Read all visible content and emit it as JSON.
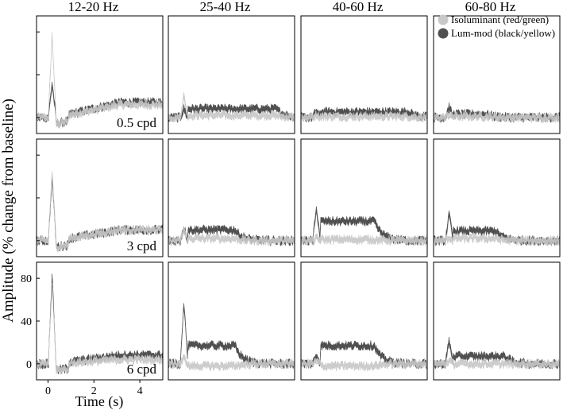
{
  "chart_data": {
    "type": "line",
    "ylabel": "Amplitude (% change from baseline)",
    "xlabel": "Time (s)",
    "columns": [
      "12-20 Hz",
      "25-40 Hz",
      "40-60 Hz",
      "60-80 Hz"
    ],
    "rows": [
      "0.5 cpd",
      "3 cpd",
      "6 cpd"
    ],
    "xlim": [
      -0.5,
      5.0
    ],
    "ylim": [
      -15,
      95
    ],
    "xticks": [
      0,
      2,
      4
    ],
    "yticks": [
      0,
      40,
      80
    ],
    "legend": {
      "position": "top-right",
      "entries": [
        {
          "label": "Isoluminant (red/green)",
          "color": "#c8c8c8"
        },
        {
          "label": "Lum-mod (black/yellow)",
          "color": "#505050"
        }
      ]
    },
    "grid": false,
    "series": [
      {
        "row": 0,
        "col": 0,
        "iso": {
          "peak": 78,
          "sustained": 12
        },
        "lum": {
          "peak": 32,
          "sustained": 14
        }
      },
      {
        "row": 0,
        "col": 1,
        "iso": {
          "peak": 20,
          "sustained": 2
        },
        "lum": {
          "peak": 8,
          "sustained": 8
        }
      },
      {
        "row": 0,
        "col": 2,
        "iso": {
          "peak": 3,
          "sustained": 1
        },
        "lum": {
          "peak": 6,
          "sustained": 5
        }
      },
      {
        "row": 0,
        "col": 3,
        "iso": {
          "peak": 3,
          "sustained": 1
        },
        "lum": {
          "peak": 10,
          "sustained": 3
        }
      },
      {
        "row": 1,
        "col": 0,
        "iso": {
          "peak": 65,
          "sustained": 10
        },
        "lum": {
          "peak": 60,
          "sustained": 10
        }
      },
      {
        "row": 1,
        "col": 1,
        "iso": {
          "peak": 10,
          "sustained": 2
        },
        "lum": {
          "peak": 12,
          "sustained": 10
        }
      },
      {
        "row": 1,
        "col": 2,
        "iso": {
          "peak": 2,
          "sustained": 1
        },
        "lum": {
          "peak": 30,
          "sustained": 18
        }
      },
      {
        "row": 1,
        "col": 3,
        "iso": {
          "peak": 3,
          "sustained": 2
        },
        "lum": {
          "peak": 25,
          "sustained": 9
        }
      },
      {
        "row": 2,
        "col": 0,
        "iso": {
          "peak": 75,
          "sustained": 4
        },
        "lum": {
          "peak": 85,
          "sustained": 8
        }
      },
      {
        "row": 2,
        "col": 1,
        "iso": {
          "peak": 5,
          "sustained": -2
        },
        "lum": {
          "peak": 58,
          "sustained": 17
        }
      },
      {
        "row": 2,
        "col": 2,
        "iso": {
          "peak": 2,
          "sustained": -2
        },
        "lum": {
          "peak": 8,
          "sustained": 17
        }
      },
      {
        "row": 2,
        "col": 3,
        "iso": {
          "peak": 3,
          "sustained": 0
        },
        "lum": {
          "peak": 22,
          "sustained": 7
        }
      }
    ]
  }
}
